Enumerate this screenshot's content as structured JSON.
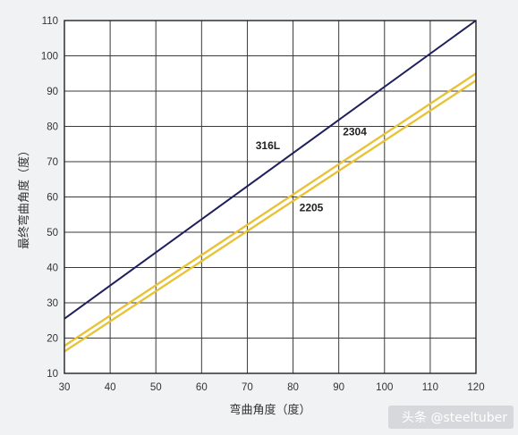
{
  "chart_data": {
    "type": "line",
    "xlabel": "弯曲角度（度）",
    "ylabel": "最终弯曲角度（度）",
    "xlim": [
      30,
      120
    ],
    "ylim": [
      10,
      110
    ],
    "xticks": [
      30,
      40,
      50,
      60,
      70,
      80,
      90,
      100,
      110,
      120
    ],
    "yticks": [
      10,
      20,
      30,
      40,
      50,
      60,
      70,
      80,
      90,
      100,
      110
    ],
    "grid": true,
    "series": [
      {
        "name": "316L",
        "x": [
          30,
          120
        ],
        "y": [
          25.5,
          110
        ],
        "color": "#1f1f5e"
      },
      {
        "name": "2304",
        "x": [
          30,
          120
        ],
        "y": [
          17.8,
          95.0
        ],
        "color": "#e8c33a"
      },
      {
        "name": "2205",
        "x": [
          30,
          120
        ],
        "y": [
          16.2,
          93.0
        ],
        "color": "#e8c33a"
      }
    ],
    "annotations": [
      {
        "text": "316L",
        "series": "316L"
      },
      {
        "text": "2304",
        "series": "2304"
      },
      {
        "text": "2205",
        "series": "2205"
      }
    ]
  },
  "watermark": "头条 @steeltuber"
}
